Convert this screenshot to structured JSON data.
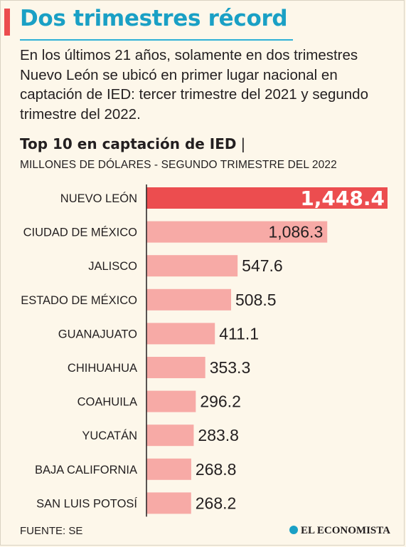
{
  "header": {
    "title": "Dos trimestres récord",
    "intro": "En los últimos 21 años, solamente en dos trimestres Nuevo León se ubicó en primer lugar nacional en captación de IED: tercer trimestre del 2021 y segundo trimestre del 2022."
  },
  "chart_data": {
    "type": "bar",
    "orientation": "horizontal",
    "title": "Top 10 en captación de IED",
    "title_separator": "|",
    "subtitle": "MILLONES DE DÓLARES - SEGUNDO TRIMESTRE DEL 2022",
    "categories": [
      "NUEVO LEÓN",
      "CIUDAD DE MÉXICO",
      "JALISCO",
      "ESTADO DE MÉXICO",
      "GUANAJUATO",
      "CHIHUAHUA",
      "COAHUILA",
      "YUCATÁN",
      "BAJA CALIFORNIA",
      "SAN LUIS POTOSÍ"
    ],
    "values": [
      1448.4,
      1086.3,
      547.6,
      508.5,
      411.1,
      353.3,
      296.2,
      283.8,
      268.8,
      268.2
    ],
    "labels": [
      "1,448.4",
      "1,086.3",
      "547.6",
      "508.5",
      "411.1",
      "353.3",
      "296.2",
      "283.8",
      "268.8",
      "268.2"
    ],
    "highlight_index": 0,
    "colors": {
      "highlight": "#ec4d4f",
      "bar": "#f7aaa6",
      "axis": "#231f20"
    }
  },
  "footer": {
    "source": "FUENTE: SE",
    "brand": "EL ECONOMISTA",
    "brand_icon": "el-economista-logo-icon"
  }
}
